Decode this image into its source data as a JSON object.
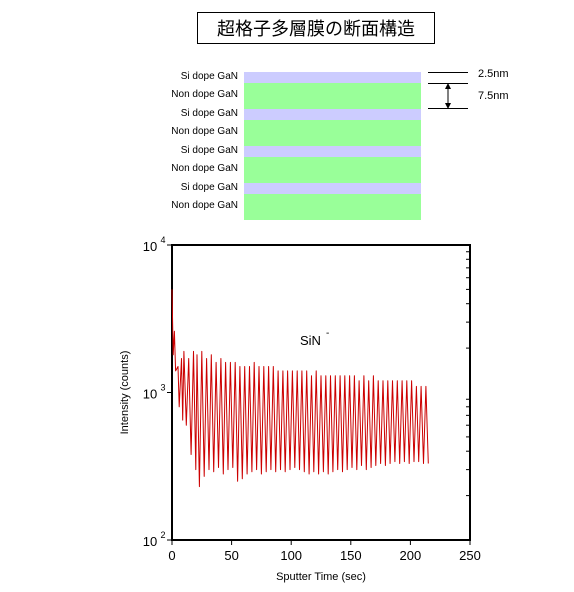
{
  "title": "超格子多層膜の断面構造",
  "structure": {
    "layers": [
      {
        "label": "Si dope GaN",
        "type": "si",
        "color": "#ccccff"
      },
      {
        "label": "Non dope GaN",
        "type": "non",
        "color": "#99ff99"
      },
      {
        "label": "Si dope GaN",
        "type": "si",
        "color": "#ccccff"
      },
      {
        "label": "Non dope GaN",
        "type": "non",
        "color": "#99ff99"
      },
      {
        "label": "Si dope GaN",
        "type": "si",
        "color": "#ccccff"
      },
      {
        "label": "Non dope GaN",
        "type": "non",
        "color": "#99ff99"
      },
      {
        "label": "Si dope GaN",
        "type": "si",
        "color": "#ccccff"
      },
      {
        "label": "Non dope GaN",
        "type": "non",
        "color": "#99ff99"
      }
    ],
    "thickness_si": "2.5nm",
    "thickness_non": "7.5nm"
  },
  "chart_data": {
    "type": "line",
    "xlabel": "Sputter Time (sec)",
    "ylabel": "Intensity (counts)",
    "annotation": "SiN",
    "annotation_sup": "-",
    "xlim": [
      0,
      250
    ],
    "ylim": [
      100,
      10000
    ],
    "yscale": "log",
    "x_ticks": [
      0,
      50,
      100,
      150,
      200,
      250
    ],
    "y_ticks": [
      {
        "base": "10",
        "exp": "2",
        "value": 100
      },
      {
        "base": "10",
        "exp": "3",
        "value": 1000
      },
      {
        "base": "10",
        "exp": "4",
        "value": 10000
      }
    ],
    "line_color": "#cc0000",
    "series": [
      {
        "x": [
          0,
          1,
          2,
          3,
          5,
          6,
          8,
          9,
          10,
          12,
          14,
          16,
          18,
          20,
          21,
          23,
          25,
          27,
          29,
          31,
          33,
          35,
          37,
          39,
          41,
          43,
          45,
          47,
          49,
          51,
          53,
          55,
          57,
          59,
          61,
          63,
          65,
          67,
          69,
          71,
          73,
          75,
          77,
          79,
          81,
          83,
          85,
          87,
          89,
          91,
          93,
          95,
          97,
          99,
          101,
          103,
          105,
          107,
          109,
          111,
          113,
          115,
          117,
          119,
          121,
          123,
          125,
          127,
          129,
          131,
          133,
          135,
          137,
          139,
          141,
          143,
          145,
          147,
          149,
          151,
          153,
          155,
          157,
          159,
          161,
          163,
          165,
          167,
          169,
          171,
          173,
          175,
          177,
          179,
          181,
          183,
          185,
          187,
          189,
          191,
          193,
          195,
          197,
          199,
          201,
          203,
          205,
          207,
          209,
          211,
          213,
          215
        ],
        "y": [
          5000,
          1800,
          2600,
          1400,
          1500,
          800,
          1700,
          650,
          1900,
          600,
          1700,
          380,
          1900,
          300,
          1800,
          230,
          1900,
          270,
          1700,
          300,
          1800,
          290,
          1600,
          310,
          1700,
          280,
          1600,
          300,
          1600,
          310,
          1600,
          250,
          1500,
          260,
          1500,
          280,
          1500,
          290,
          1600,
          300,
          1500,
          280,
          1500,
          290,
          1500,
          300,
          1500,
          290,
          1400,
          300,
          1400,
          290,
          1400,
          300,
          1400,
          310,
          1400,
          300,
          1400,
          290,
          1400,
          280,
          1300,
          290,
          1400,
          280,
          1300,
          290,
          1300,
          280,
          1300,
          290,
          1300,
          300,
          1300,
          290,
          1300,
          300,
          1300,
          310,
          1300,
          300,
          1200,
          320,
          1300,
          300,
          1200,
          310,
          1300,
          320,
          1200,
          330,
          1200,
          320,
          1200,
          330,
          1200,
          340,
          1200,
          330,
          1200,
          340,
          1200,
          330,
          1200,
          340,
          1100,
          340,
          1100,
          330,
          1100,
          330
        ]
      }
    ]
  }
}
